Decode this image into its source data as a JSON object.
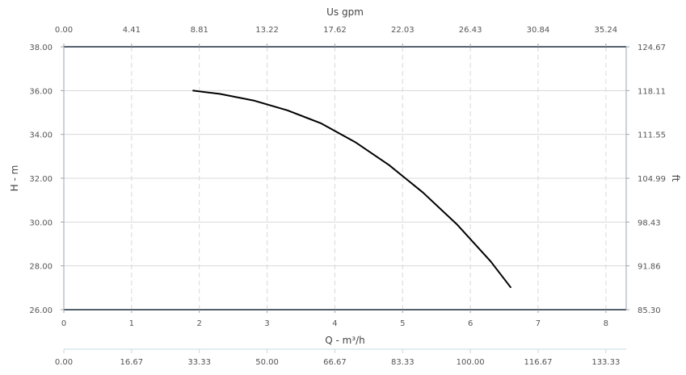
{
  "chart_data": {
    "type": "line",
    "x": [
      1.9,
      2.3,
      2.8,
      3.3,
      3.8,
      4.3,
      4.8,
      5.3,
      5.8,
      6.3,
      6.6
    ],
    "series": [
      {
        "values": [
          36.0,
          35.85,
          35.55,
          35.1,
          34.5,
          33.65,
          32.6,
          31.35,
          29.9,
          28.2,
          27.0
        ]
      }
    ],
    "xlabel": "Q - m³/h",
    "ylabel": "H - m",
    "xlim": [
      0,
      8.3
    ],
    "ylim": [
      26,
      38
    ],
    "x_ticks": [
      "0",
      "1",
      "2",
      "3",
      "4",
      "5",
      "6",
      "7",
      "8"
    ],
    "y_ticks": [
      "26.00",
      "28.00",
      "30.00",
      "32.00",
      "34.00",
      "36.00",
      "38.00"
    ],
    "top_axis": {
      "label": "Us gpm",
      "ticks": [
        "0.00",
        "4.41",
        "8.81",
        "13.22",
        "17.62",
        "22.03",
        "26.43",
        "30.84",
        "35.24"
      ]
    },
    "right_axis": {
      "label": "ft",
      "ticks": [
        "85.30",
        "91.86",
        "98.43",
        "104.99",
        "111.55",
        "118.11",
        "124.67"
      ]
    },
    "bottom_axis_2": {
      "ticks": [
        "0.00",
        "16.67",
        "33.33",
        "50.00",
        "66.67",
        "83.33",
        "100.00",
        "116.67",
        "133.33"
      ]
    },
    "grid": true,
    "colors": {
      "curve": "#000000",
      "frame": "#1a2a3a",
      "grid": "#d8d8d8"
    }
  }
}
